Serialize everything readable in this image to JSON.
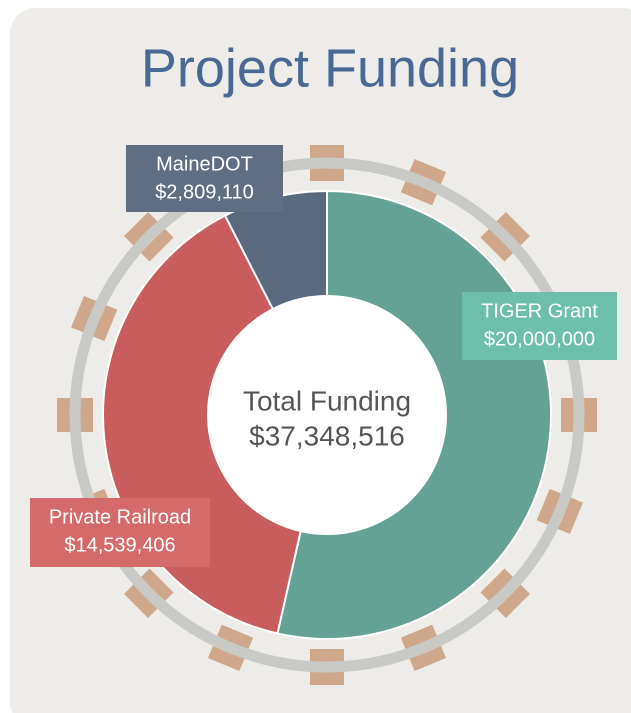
{
  "chart_data": {
    "type": "donut",
    "title": "Project Funding",
    "categories": [
      "TIGER Grant",
      "Private Railroad",
      "MaineDOT"
    ],
    "values": [
      20000000,
      14539406,
      2809110
    ],
    "value_labels": [
      "$20,000,000",
      "$14,539,406",
      "$2,809,110"
    ],
    "colors": [
      "#63a294",
      "#c95c5c",
      "#5a6a7e"
    ],
    "label_colors": [
      "#6dbfab",
      "#d46a6a",
      "#5f6e82"
    ],
    "center_text": [
      "Total Funding",
      "$37,348,516"
    ]
  }
}
